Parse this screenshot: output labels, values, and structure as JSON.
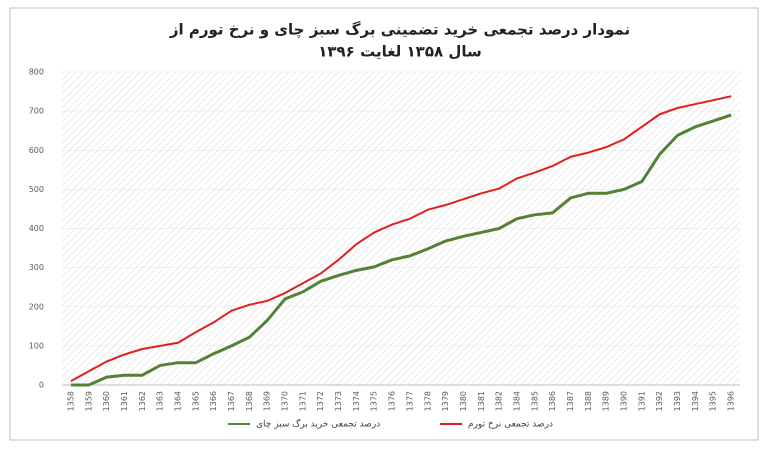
{
  "chart_data": {
    "type": "line",
    "title": "نمودار درصد تجمعی خرید تضمینی برگ سبز چای و نرخ تورم از",
    "subtitle": "سال ۱۳۵۸ لغایت ۱۳۹۶",
    "categories": [
      "1358",
      "1359",
      "1360",
      "1361",
      "1362",
      "1363",
      "1364",
      "1365",
      "1366",
      "1367",
      "1368",
      "1369",
      "1370",
      "1371",
      "1372",
      "1373",
      "1374",
      "1375",
      "1376",
      "1377",
      "1378",
      "1379",
      "1380",
      "1381",
      "1382",
      "1384",
      "1385",
      "1386",
      "1387",
      "1388",
      "1389",
      "1390",
      "1391",
      "1392",
      "1393",
      "1394",
      "1395",
      "1396"
    ],
    "series": [
      {
        "name": "درصد تجمعی نرخ تورم",
        "color": "#e02020",
        "values": [
          10,
          35,
          60,
          78,
          92,
          100,
          108,
          135,
          160,
          190,
          205,
          215,
          235,
          260,
          285,
          320,
          360,
          390,
          410,
          425,
          448,
          460,
          475,
          490,
          502,
          528,
          543,
          560,
          583,
          594,
          608,
          628,
          660,
          692,
          708,
          718,
          728,
          738
        ]
      },
      {
        "name": "درصد تجمعی خرید برگ سبز چای",
        "color": "#548235",
        "values": [
          0,
          0,
          20,
          25,
          25,
          50,
          57,
          57,
          80,
          100,
          122,
          165,
          220,
          238,
          265,
          280,
          293,
          302,
          320,
          330,
          348,
          368,
          380,
          390,
          400,
          425,
          435,
          440,
          478,
          490,
          490,
          500,
          520,
          590,
          638,
          660,
          675,
          690
        ]
      }
    ],
    "ylim": [
      0,
      800
    ],
    "yticks": [
      0,
      100,
      200,
      300,
      400,
      500,
      600,
      700,
      800
    ],
    "grid": true
  }
}
